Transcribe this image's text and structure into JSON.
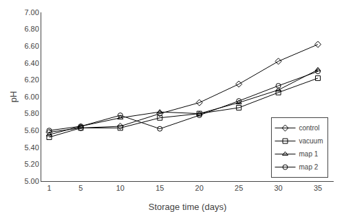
{
  "chart_data": {
    "type": "line",
    "x": [
      1,
      5,
      10,
      15,
      20,
      25,
      30,
      35
    ],
    "series": [
      {
        "name": "control",
        "color": "#000000",
        "marker": "diamond",
        "values": [
          5.58,
          5.63,
          5.65,
          5.8,
          5.93,
          6.15,
          6.42,
          6.62
        ]
      },
      {
        "name": "vacuum",
        "color": "#000000",
        "marker": "square",
        "values": [
          5.52,
          5.63,
          5.63,
          5.75,
          5.8,
          5.87,
          6.05,
          6.22
        ]
      },
      {
        "name": "map 1",
        "color": "#000000",
        "marker": "triangle-up",
        "values": [
          5.55,
          5.65,
          5.75,
          5.82,
          5.8,
          5.93,
          6.08,
          6.32
        ]
      },
      {
        "name": "map 2",
        "color": "#000000",
        "marker": "circle",
        "values": [
          5.6,
          5.65,
          5.78,
          5.62,
          5.78,
          5.95,
          6.13,
          6.3
        ]
      }
    ],
    "xlabel": "Storage time (days)",
    "ylabel": "pH",
    "xlim": [
      0,
      37
    ],
    "xticks": [
      1,
      5,
      10,
      15,
      20,
      25,
      30,
      35
    ],
    "ylim": [
      5.0,
      7.0
    ],
    "yticks": [
      {
        "value": 5.0,
        "label": "5.00"
      },
      {
        "value": 5.2,
        "label": "5.20"
      },
      {
        "value": 5.4,
        "label": "5.40"
      },
      {
        "value": 5.6,
        "label": "5.60"
      },
      {
        "value": 5.8,
        "label": "5.80"
      },
      {
        "value": 6.0,
        "label": "6.00"
      },
      {
        "value": 6.2,
        "label": "6.20"
      },
      {
        "value": 6.4,
        "label": "6.40"
      },
      {
        "value": 6.6,
        "label": "6.60"
      },
      {
        "value": 6.8,
        "label": "6.80"
      },
      {
        "value": 7.0,
        "label": "7.00"
      }
    ],
    "grid": false,
    "legend": "lower right"
  }
}
